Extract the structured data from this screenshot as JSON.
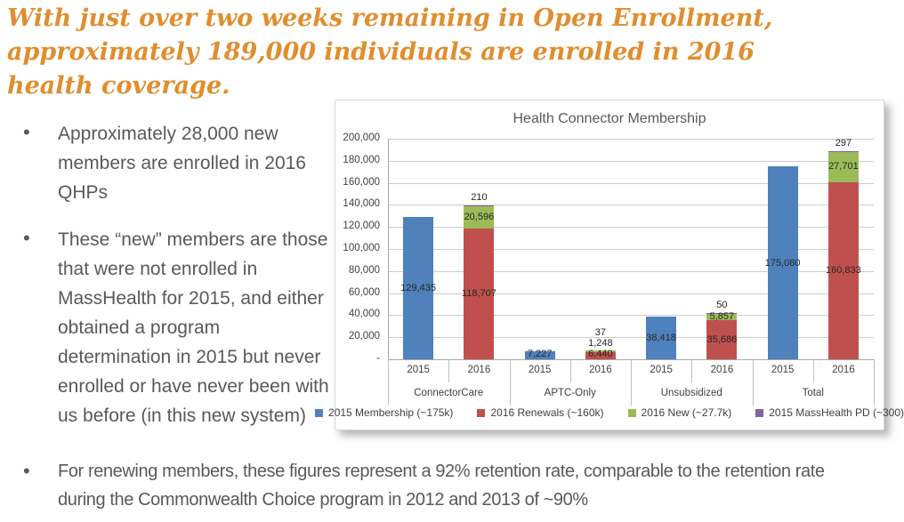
{
  "slide": {
    "title": "With just over two weeks remaining in Open Enrollment, approximately 189,000 individuals are enrolled in 2016 health coverage.",
    "bullet_char": "•",
    "bullets_left": [
      "Approximately 28,000 new members are enrolled in 2016 QHPs",
      "These “new” members are those that were not enrolled in MassHealth for 2015, and either obtained a program determination in 2015 but never enrolled or have never been with us before (in this new system)"
    ],
    "bullet_bottom": "For renewing members, these figures represent a 92% retention rate, comparable to the retention rate during the Commonwealth Choice program in 2012 and 2013 of ~90%",
    "accent_color": "#E08E2E",
    "body_text_color": "#58595B"
  },
  "chart_data": {
    "type": "bar",
    "stacked": true,
    "title": "Health Connector Membership",
    "categories": [
      "ConnectorCare",
      "APTC-Only",
      "Unsubsidized",
      "Total"
    ],
    "year_labels": [
      "2015",
      "2016"
    ],
    "series": [
      {
        "name": "2015 Membership (~175k)",
        "color": "#4F81BD",
        "stack": "2015",
        "values": [
          129435,
          7227,
          38418,
          175080
        ]
      },
      {
        "name": "2016 Renewals (~160k)",
        "color": "#C0504D",
        "stack": "2016",
        "values": [
          118707,
          6440,
          35686,
          160833
        ]
      },
      {
        "name": "2016 New (~27.7k)",
        "color": "#9BBB59",
        "stack": "2016",
        "values": [
          20596,
          1248,
          5857,
          27701
        ]
      },
      {
        "name": "2015 MassHealth PD (~300)",
        "color": "#8064A2",
        "stack": "2016",
        "values": [
          210,
          37,
          50,
          297
        ]
      }
    ],
    "ylim": [
      0,
      200000
    ],
    "ytick_step": 20000,
    "zero_tick_label": "-",
    "grid": true,
    "legend_position": "bottom",
    "data_labels": true
  }
}
